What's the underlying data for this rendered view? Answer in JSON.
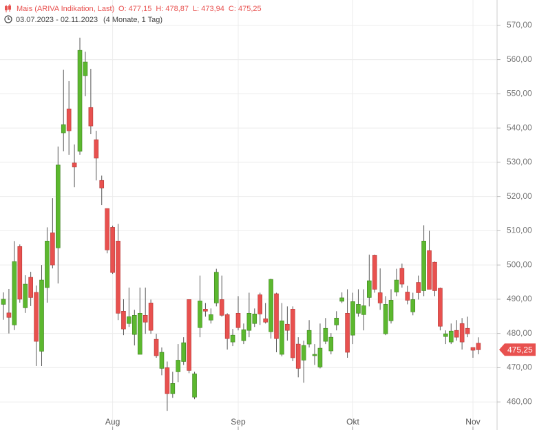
{
  "chart_data": {
    "type": "candlestick",
    "title": "Mais (ARIVA Indikation, Last)",
    "ohlc_labels": [
      "O: 477,15",
      "H: 478,87",
      "L: 473,94",
      "C: 475,25"
    ],
    "subtitle": "03.07.2023 - 02.11.2023",
    "period": "(4 Monate, 1 Tag)",
    "last_price": {
      "value": 475.25,
      "label": "475,25"
    },
    "up_color": "#5cb82f",
    "down_color": "#e8514f",
    "ylim": [
      451.8,
      577.4
    ],
    "yticks": [
      {
        "value": 460,
        "label": "460,00"
      },
      {
        "value": 470,
        "label": "470,00"
      },
      {
        "value": 480,
        "label": "480,00"
      },
      {
        "value": 490,
        "label": "490,00"
      },
      {
        "value": 500,
        "label": "500,00"
      },
      {
        "value": 510,
        "label": "510,00"
      },
      {
        "value": 520,
        "label": "520,00"
      },
      {
        "value": 530,
        "label": "530,00"
      },
      {
        "value": 540,
        "label": "540,00"
      },
      {
        "value": 550,
        "label": "550,00"
      },
      {
        "value": 560,
        "label": "560,00"
      },
      {
        "value": 570,
        "label": "570,00"
      }
    ],
    "grid": true,
    "categories": [
      null,
      null,
      null,
      null,
      null,
      null,
      null,
      null,
      null,
      null,
      null,
      null,
      null,
      null,
      null,
      null,
      null,
      null,
      null,
      null,
      "Aug",
      null,
      null,
      null,
      null,
      null,
      null,
      null,
      null,
      null,
      null,
      null,
      null,
      null,
      null,
      null,
      null,
      null,
      null,
      null,
      null,
      null,
      null,
      "Sep",
      null,
      null,
      null,
      null,
      null,
      null,
      null,
      null,
      null,
      null,
      null,
      null,
      null,
      null,
      null,
      null,
      null,
      null,
      null,
      null,
      "Okt",
      null,
      null,
      null,
      null,
      null,
      null,
      null,
      null,
      null,
      null,
      null,
      null,
      null,
      null,
      null,
      null,
      null,
      null,
      null,
      null,
      null,
      "Nov",
      null
    ],
    "open": [
      488.5,
      486,
      482.5,
      505.4,
      487.5,
      496.4,
      492,
      474.8,
      493.4,
      509.4,
      505,
      538.6,
      545.6,
      529.8,
      533.2,
      555.3,
      546,
      536.6,
      524.7,
      516.5,
      511,
      507,
      486.5,
      482.9,
      479.7,
      473.9,
      485.3,
      488.9,
      478.3,
      469.8,
      470,
      462.4,
      468.8,
      471.8,
      489.9,
      461.4,
      481.7,
      487.1,
      483.9,
      488.9,
      489.9,
      485.5,
      477.5,
      485.9,
      477.9,
      480.9,
      482.9,
      491.3,
      484.3,
      480.5,
      491.6,
      473.9,
      482.7,
      487.1,
      476.9,
      472.2,
      476.9,
      473.5,
      470.2,
      477.7,
      474.9,
      482.5,
      489.4,
      485.9,
      479.5,
      485.9,
      485.5,
      490.5,
      502.8,
      491.9,
      479.9,
      483.7,
      492.1,
      499,
      492.1,
      486.3,
      494.9,
      492.5,
      504.2,
      500.8,
      493.2,
      479.1,
      477.5,
      480.9,
      482.9,
      481.5,
      475.9,
      477.15
    ],
    "high": [
      492,
      493,
      507,
      506,
      497,
      498,
      494,
      500,
      511,
      519.5,
      534.6,
      557,
      553.7,
      535.2,
      566.4,
      562.3,
      557.3,
      539.2,
      526.1,
      516.5,
      511.5,
      512,
      490,
      493.4,
      486.9,
      493.4,
      493.4,
      489.9,
      479.9,
      475.9,
      471.8,
      468.8,
      476.9,
      478.9,
      489.9,
      468.8,
      496.9,
      488.9,
      487.3,
      498.9,
      496.9,
      485.9,
      481.3,
      490.9,
      482.9,
      491.9,
      487.3,
      491.9,
      488.9,
      496,
      491.9,
      488.9,
      487.9,
      487.9,
      478.9,
      477.9,
      483.9,
      476.9,
      482.9,
      484.5,
      480.1,
      486.5,
      492,
      492.9,
      491.9,
      492.9,
      492.9,
      503,
      503,
      499,
      490.9,
      492.9,
      498.9,
      500.4,
      493.9,
      491.9,
      496.9,
      511.6,
      510,
      501,
      493.4,
      480.9,
      482.9,
      483.9,
      484.5,
      484.9,
      475.9,
      478.87
    ],
    "low": [
      484,
      480,
      481,
      489,
      486,
      488,
      470.5,
      470.5,
      489,
      499,
      494.6,
      533.2,
      532.2,
      522.7,
      532.2,
      549.3,
      538.2,
      524.7,
      517.5,
      503.4,
      497.4,
      483.9,
      479.5,
      481.9,
      476.5,
      473.9,
      479.9,
      479.9,
      472.9,
      467.8,
      457.4,
      461.2,
      465.8,
      470.8,
      468.4,
      460.8,
      478.9,
      484.9,
      482.9,
      487.9,
      484.9,
      475.3,
      476.3,
      480.9,
      476.9,
      478.9,
      481.9,
      482.5,
      482.9,
      478.5,
      474.5,
      473.3,
      477.9,
      471.9,
      467.2,
      465.6,
      475.9,
      470.8,
      469.8,
      476.9,
      473.9,
      480.9,
      488.9,
      472.9,
      476.9,
      484.9,
      480.9,
      487.9,
      491.9,
      486.9,
      479.5,
      482.9,
      490.9,
      493.4,
      488.5,
      485.3,
      489.9,
      490.9,
      492.9,
      490.9,
      480.9,
      476.9,
      476.9,
      477.9,
      475.3,
      478.9,
      472.9,
      473.94
    ],
    "close": [
      490,
      484.7,
      501,
      490,
      494.4,
      490.5,
      477.7,
      495.6,
      507,
      500,
      529.2,
      541,
      539.2,
      528.6,
      562.7,
      559.3,
      540.6,
      531.2,
      522.5,
      504.4,
      497.8,
      485.9,
      481.3,
      484.9,
      485.3,
      485.9,
      483.3,
      480.9,
      473.5,
      474.5,
      462.4,
      465.4,
      472.2,
      477.3,
      469.2,
      468.2,
      489.5,
      486.5,
      485.5,
      497.9,
      485.3,
      478.5,
      479.5,
      481.7,
      481.1,
      485.9,
      485.7,
      485.7,
      483.3,
      495.8,
      478.5,
      483.7,
      480.9,
      472.9,
      469.8,
      476.5,
      480.9,
      473.9,
      475.7,
      481.5,
      478.9,
      484.5,
      490.4,
      474.5,
      489.3,
      488.5,
      488.1,
      495.4,
      492.9,
      488.9,
      488.5,
      489.7,
      495.6,
      494.4,
      489.7,
      489.9,
      491.9,
      507,
      492.9,
      492.5,
      482.1,
      479.9,
      480.7,
      478.9,
      477.5,
      479.9,
      475.1,
      475.25
    ]
  }
}
